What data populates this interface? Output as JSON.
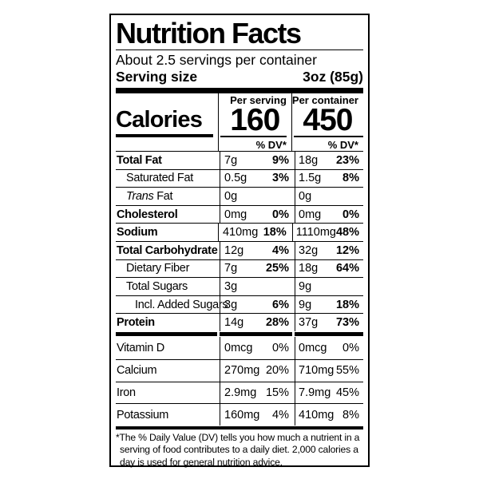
{
  "colors": {
    "text": "#000000",
    "background": "#ffffff"
  },
  "title": "Nutrition Facts",
  "servings_per_container": "About 2.5 servings per container",
  "serving_size": {
    "label": "Serving size",
    "value": "3oz (85g)"
  },
  "calories": {
    "label": "Calories",
    "per_serving": {
      "header": "Per serving",
      "value": "160",
      "dv_header": "% DV*"
    },
    "per_container": {
      "header": "Per container",
      "value": "450",
      "dv_header": "% DV*"
    }
  },
  "nutrients": [
    {
      "name": "Total Fat",
      "serving_amount": "7g",
      "serving_dv": "9%",
      "container_amount": "18g",
      "container_dv": "23%"
    },
    {
      "name": "Saturated Fat",
      "serving_amount": "0.5g",
      "serving_dv": "3%",
      "container_amount": "1.5g",
      "container_dv": "8%"
    },
    {
      "name_italic": "Trans",
      "name_rest": " Fat",
      "serving_amount": "0g",
      "serving_dv": "",
      "container_amount": "0g",
      "container_dv": ""
    },
    {
      "name": "Cholesterol",
      "serving_amount": "0mg",
      "serving_dv": "0%",
      "container_amount": "0mg",
      "container_dv": "0%"
    },
    {
      "name": "Sodium",
      "serving_amount": "410mg",
      "serving_dv": "18%",
      "container_amount": "1110mg",
      "container_dv": "48%"
    },
    {
      "name": "Total Carbohydrate",
      "serving_amount": "12g",
      "serving_dv": "4%",
      "container_amount": "32g",
      "container_dv": "12%"
    },
    {
      "name": "Dietary Fiber",
      "serving_amount": "7g",
      "serving_dv": "25%",
      "container_amount": "18g",
      "container_dv": "64%"
    },
    {
      "name": "Total Sugars",
      "serving_amount": "3g",
      "serving_dv": "",
      "container_amount": "9g",
      "container_dv": ""
    },
    {
      "name": "Incl. Added Sugars",
      "serving_amount": "3g",
      "serving_dv": "6%",
      "container_amount": "9g",
      "container_dv": "18%"
    },
    {
      "name": "Protein",
      "serving_amount": "14g",
      "serving_dv": "28%",
      "container_amount": "37g",
      "container_dv": "73%"
    }
  ],
  "vitamins": [
    {
      "name": "Vitamin D",
      "serving_amount": "0mcg",
      "serving_dv": "0%",
      "container_amount": "0mcg",
      "container_dv": "0%"
    },
    {
      "name": "Calcium",
      "serving_amount": "270mg",
      "serving_dv": "20%",
      "container_amount": "710mg",
      "container_dv": "55%"
    },
    {
      "name": "Iron",
      "serving_amount": "2.9mg",
      "serving_dv": "15%",
      "container_amount": "7.9mg",
      "container_dv": "45%"
    },
    {
      "name": "Potassium",
      "serving_amount": "160mg",
      "serving_dv": "4%",
      "container_amount": "410mg",
      "container_dv": "8%"
    }
  ],
  "footnote": "*The % Daily Value (DV) tells you how much a nutrient in a serving of food contributes to a daily diet. 2,000 calories a day is used for general nutrition advice."
}
